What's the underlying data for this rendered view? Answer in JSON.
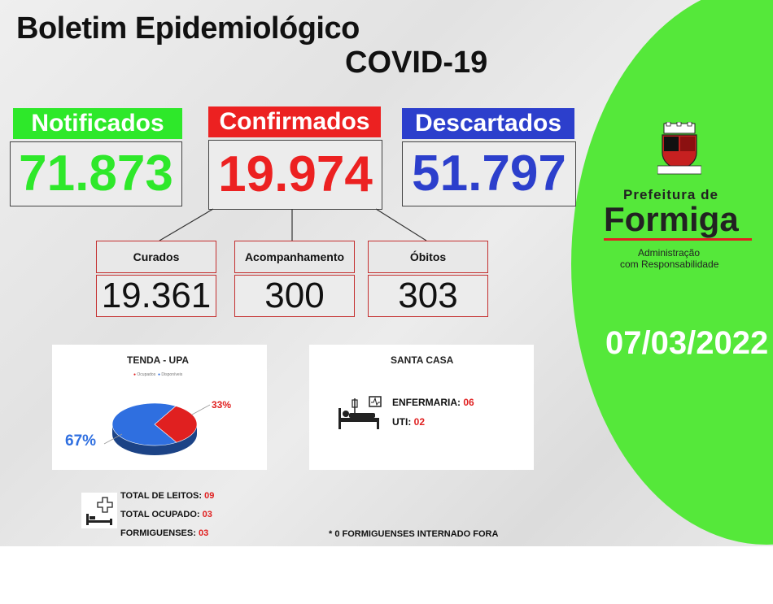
{
  "title_line1": "Boletim Epidemiológico",
  "title_line2": "COVID-19",
  "stats": [
    {
      "label": "Notificados",
      "value": "71.873",
      "label_bg": "#2ee82a",
      "value_color": "#2ee82a"
    },
    {
      "label": "Confirmados",
      "value": "19.974",
      "label_bg": "#ec2121",
      "value_color": "#ec2121"
    },
    {
      "label": "Descartados",
      "value": "51.797",
      "label_bg": "#2c3fcc",
      "value_color": "#2c3fcc"
    }
  ],
  "substats": [
    {
      "label": "Curados",
      "value": "19.361"
    },
    {
      "label": "Acompanhamento",
      "value": "300"
    },
    {
      "label": "Óbitos",
      "value": "303"
    }
  ],
  "tenda": {
    "title": "TENDA - UPA",
    "legend": [
      "Ocupados",
      "Disponíveis"
    ],
    "chart_data": {
      "type": "pie",
      "categories": [
        "Ocupados",
        "Disponíveis"
      ],
      "values": [
        33,
        67
      ],
      "labels": [
        "33%",
        "67%"
      ],
      "colors": [
        "#e02020",
        "#2f6fe0"
      ]
    }
  },
  "santa_casa": {
    "title": "SANTA CASA",
    "enfermaria_label": "ENFERMARIA:",
    "enfermaria_value": "06",
    "uti_label": "UTI:",
    "uti_value": "02",
    "icon": "hospital-bed-monitor-icon"
  },
  "leitos": {
    "total_leitos_label": "TOTAL DE LEITOS:",
    "total_leitos_value": "09",
    "total_ocupado_label": "TOTAL OCUPADO:",
    "total_ocupado_value": "03",
    "formiguenses_label": "FORMIGUENSES:",
    "formiguenses_value": "03",
    "icon": "hospital-bed-cross-icon"
  },
  "footnote": "* 0 FORMIGUENSES INTERNADO FORA",
  "brand": {
    "line1": "Prefeitura de",
    "line2": "Formiga",
    "line3": "Administração",
    "line4": "com Responsabilidade",
    "crest": "coat-of-arms-icon"
  },
  "date": "07/03/2022"
}
